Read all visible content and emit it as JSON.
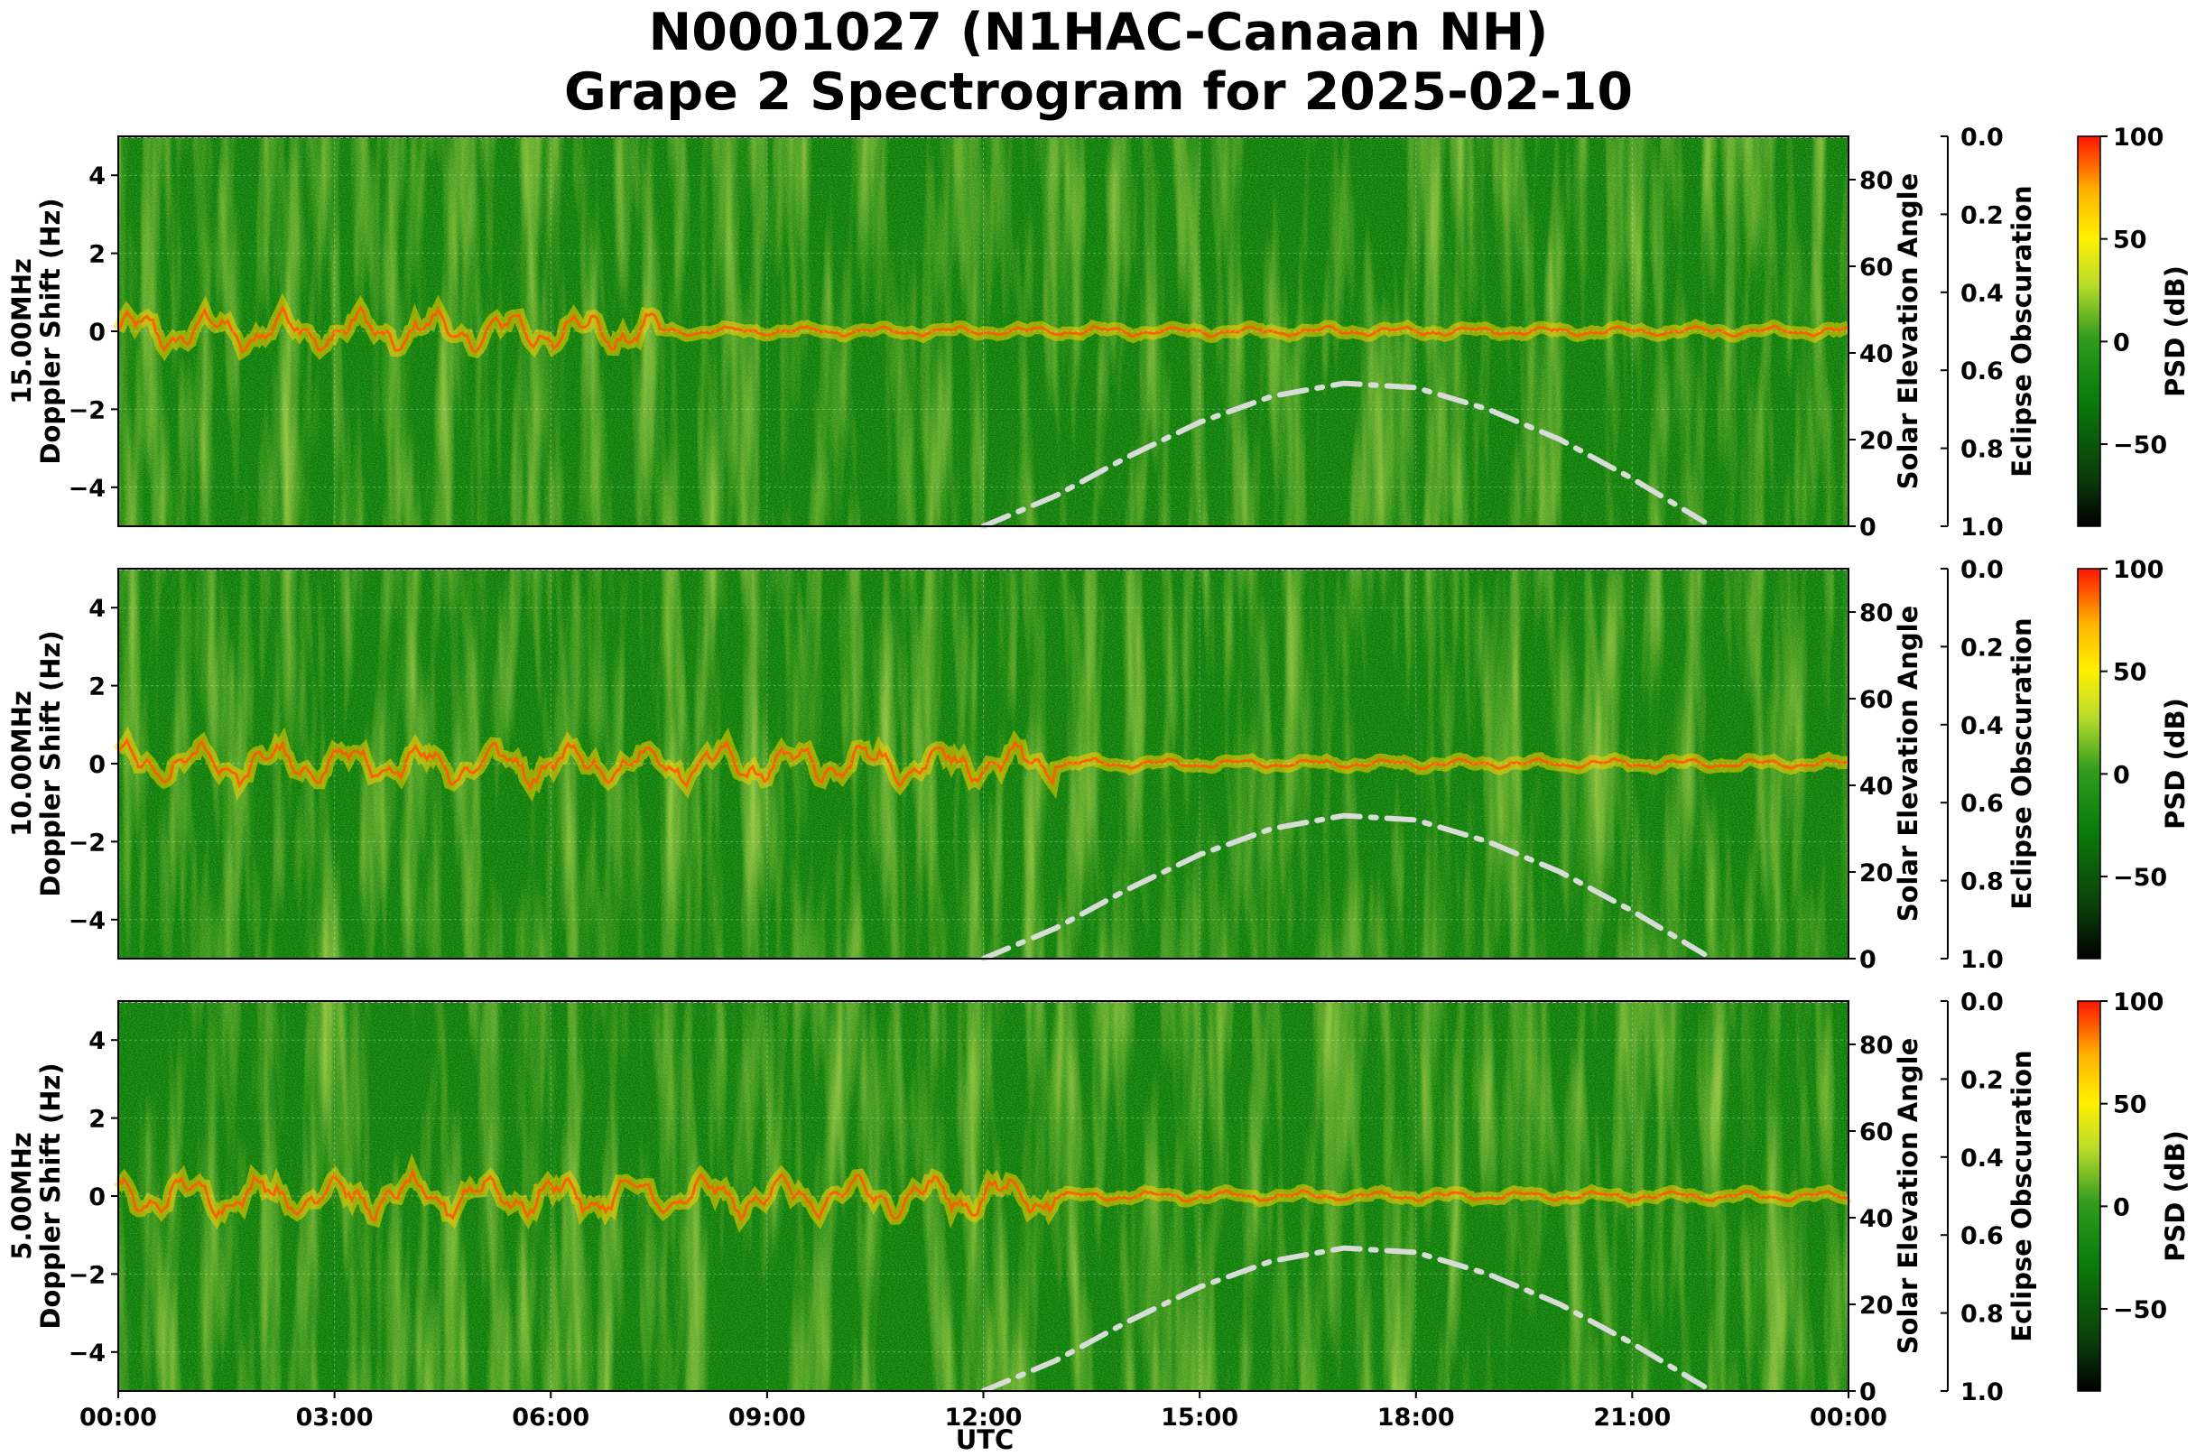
{
  "title_line1": "N0001027 (N1HAC-Canaan NH)",
  "title_line2": "Grape 2 Spectrogram for 2025-02-10",
  "xlabel": "UTC",
  "x_ticks": [
    "00:00",
    "03:00",
    "06:00",
    "09:00",
    "12:00",
    "15:00",
    "18:00",
    "21:00",
    "00:00"
  ],
  "right_axis_label": "Solar Elevation Angle",
  "eclipse_axis_label": "Eclipse Obscuration",
  "colorbar_label": "PSD (dB)",
  "y_ticks": [
    "4",
    "2",
    "0",
    "−2",
    "−4"
  ],
  "elev_ticks": [
    "80",
    "60",
    "40",
    "20",
    "0"
  ],
  "eclipse_ticks": [
    "0.0",
    "0.2",
    "0.4",
    "0.6",
    "0.8",
    "1.0"
  ],
  "cbar_ticks": [
    "100",
    "50",
    "0",
    "−50"
  ],
  "colors": {
    "colormap": [
      "#000000",
      "#0b3a0b",
      "#0a7d0a",
      "#4ea82a",
      "#dde62a",
      "#ffd400",
      "#ff2a00"
    ],
    "elevation_curve": "#d7dcd7"
  },
  "chart_data": {
    "type": "heatmap",
    "x_range_hours": [
      0,
      24
    ],
    "y_range_hz": [
      -5,
      5
    ],
    "elevation_range_deg": [
      0,
      90
    ],
    "eclipse_range": [
      0.0,
      1.0
    ],
    "psd_range_db": [
      -90,
      100
    ],
    "grid": true,
    "panels": [
      {
        "ylabel_line1": "15.00MHz",
        "ylabel_line2": "Doppler Shift (Hz)",
        "trace_end_hours": 7.5
      },
      {
        "ylabel_line1": "10.00MHz",
        "ylabel_line2": "Doppler Shift (Hz)",
        "trace_end_hours": 13.0
      },
      {
        "ylabel_line1": "5.00MHz",
        "ylabel_line2": "Doppler Shift (Hz)",
        "trace_end_hours": 13.0
      }
    ],
    "solar_elevation": {
      "x_hours": [
        12.0,
        13.0,
        14.0,
        15.0,
        16.0,
        17.0,
        18.0,
        19.0,
        20.0,
        21.0,
        22.0
      ],
      "elevation_deg": [
        0,
        7,
        16,
        24,
        30,
        33,
        32,
        27,
        20,
        11,
        1
      ]
    }
  }
}
